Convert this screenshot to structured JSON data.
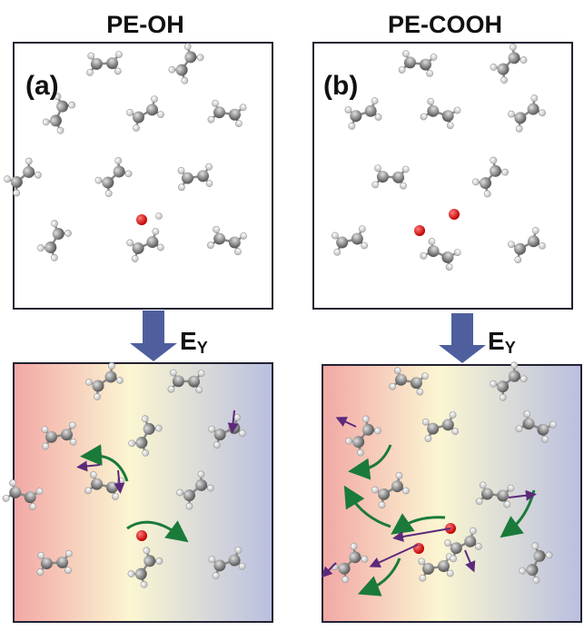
{
  "panels": [
    {
      "title": "PE-OH",
      "label": "(a)"
    },
    {
      "title": "PE-COOH",
      "label": "(b)"
    }
  ],
  "field": {
    "symbol": "E",
    "subscript": "Y"
  }
}
